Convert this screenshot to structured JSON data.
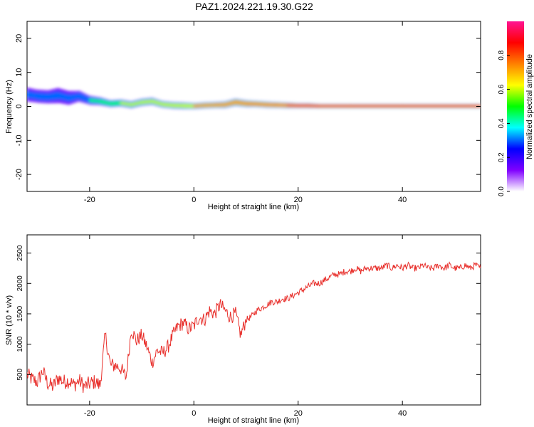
{
  "title": "PAZ1.2024.221.19.30.G22",
  "chart_data": [
    {
      "type": "heatmap",
      "title": "PAZ1.2024.221.19.30.G22",
      "xlabel": "Height of straight line (km)",
      "ylabel": "Frequency (Hz)",
      "xlim": [
        -32,
        55
      ],
      "ylim": [
        -25,
        25
      ],
      "xticks": [
        -20,
        0,
        20,
        40
      ],
      "yticks": [
        20,
        10,
        0,
        -10,
        -20
      ],
      "ytick_labels": [
        "20",
        "10",
        "0",
        "-10",
        "-20"
      ],
      "colorbar": {
        "label": "Normalized spectral amplitude",
        "range": [
          0,
          1
        ],
        "ticks": [
          0.0,
          0.2,
          0.4,
          0.6,
          0.8
        ],
        "tick_labels": [
          "0.0",
          "0.2",
          "0.4",
          "0.6",
          "0.8"
        ],
        "colormap": [
          "#ffffff",
          "#8000ff",
          "#0000ff",
          "#00ffff",
          "#00ff00",
          "#ffff00",
          "#ff8000",
          "#ff0000",
          "#ff1493"
        ]
      },
      "ridge": {
        "x": [
          -32,
          -30,
          -28,
          -26,
          -24,
          -22,
          -20,
          -18,
          -16,
          -14,
          -12,
          -10,
          -8,
          -6,
          -4,
          -2,
          0,
          2,
          4,
          6,
          8,
          10,
          12,
          14,
          16,
          18,
          20,
          22,
          24,
          30,
          40,
          55
        ],
        "y": [
          3.5,
          3.0,
          2.8,
          3.2,
          2.5,
          3.0,
          1.8,
          1.5,
          0.8,
          1.0,
          0.5,
          1.2,
          1.5,
          0.6,
          0.3,
          0.2,
          0.1,
          0.3,
          0.4,
          0.5,
          1.2,
          0.8,
          0.7,
          0.5,
          0.4,
          0.3,
          0.2,
          0.2,
          0.1,
          0.1,
          0.1,
          0.1
        ],
        "amplitude": [
          0.35,
          0.4,
          0.4,
          0.38,
          0.35,
          0.4,
          0.45,
          0.5,
          0.55,
          0.6,
          0.6,
          0.62,
          0.65,
          0.65,
          0.7,
          0.72,
          0.75,
          0.78,
          0.8,
          0.8,
          0.82,
          0.85,
          0.85,
          0.85,
          0.88,
          0.9,
          0.95,
          0.95,
          0.95,
          0.95,
          0.95,
          0.95
        ],
        "width_hz": [
          5.5,
          5.0,
          5.0,
          6.0,
          5.5,
          4.0,
          3.0,
          2.5,
          2.0,
          2.0,
          2.0,
          2.0,
          2.0,
          1.8,
          1.8,
          1.8,
          1.6,
          1.6,
          1.6,
          1.8,
          2.0,
          1.8,
          1.6,
          1.6,
          1.5,
          1.4,
          1.2,
          1.2,
          1.0,
          1.0,
          1.0,
          1.0
        ]
      }
    },
    {
      "type": "line",
      "xlabel": "Height of straight line (km)",
      "ylabel": "SNR (10 * v/v)",
      "xlim": [
        -32,
        55
      ],
      "ylim": [
        0,
        2800
      ],
      "xticks": [
        -20,
        0,
        20,
        40
      ],
      "yticks": [
        500,
        1000,
        1500,
        2000,
        2500
      ],
      "color": "#e8302c",
      "series": [
        {
          "x": [
            -32,
            -31,
            -30,
            -29,
            -28,
            -27,
            -26,
            -25,
            -24,
            -23,
            -22,
            -21,
            -20,
            -19,
            -18,
            -17,
            -16,
            -15,
            -14,
            -13,
            -12,
            -11,
            -10,
            -9,
            -8,
            -7,
            -6,
            -5,
            -4,
            -3,
            -2,
            -1,
            0,
            1,
            2,
            3,
            4,
            5,
            6,
            7,
            8,
            9,
            10,
            11,
            12,
            13,
            14,
            15,
            16,
            17,
            18,
            19,
            20,
            21,
            22,
            23,
            24,
            25,
            26,
            27,
            28,
            29,
            30,
            31,
            32,
            33,
            34,
            35,
            36,
            37,
            38,
            39,
            40,
            41,
            42,
            43,
            44,
            45,
            46,
            47,
            48,
            49,
            50,
            51,
            52,
            53,
            54,
            55
          ],
          "y": [
            500,
            420,
            380,
            560,
            350,
            300,
            450,
            380,
            400,
            330,
            400,
            300,
            350,
            380,
            320,
            1150,
            650,
            650,
            600,
            450,
            1250,
            1050,
            1150,
            950,
            700,
            900,
            850,
            950,
            1150,
            1300,
            1350,
            1250,
            1300,
            1450,
            1400,
            1550,
            1500,
            1650,
            1550,
            1450,
            1500,
            1150,
            1400,
            1450,
            1550,
            1600,
            1650,
            1700,
            1700,
            1750,
            1750,
            1800,
            1850,
            1900,
            1950,
            2000,
            2000,
            2050,
            2100,
            2150,
            2150,
            2200,
            2200,
            2250,
            2200,
            2250,
            2250,
            2250,
            2250,
            2300,
            2250,
            2300,
            2250,
            2300,
            2250,
            2250,
            2300,
            2250,
            2250,
            2300,
            2250,
            2300,
            2250,
            2250,
            2300,
            2250,
            2300,
            2250
          ]
        }
      ]
    }
  ]
}
